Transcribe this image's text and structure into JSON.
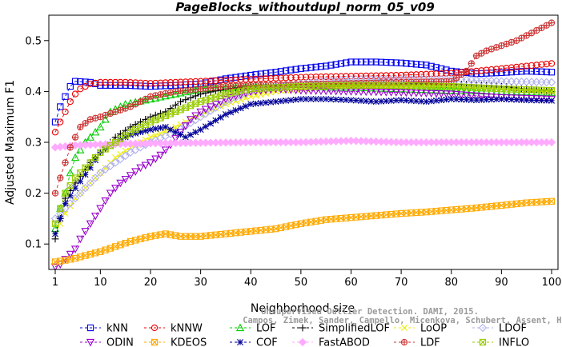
{
  "chart_data": {
    "type": "line",
    "title": "PageBlocks_withoutdupl_norm_05_v09",
    "xlabel": "Neighborhood size",
    "ylabel": "Adjusted Maximum F1",
    "xlim": [
      1,
      100
    ],
    "ylim": [
      0.05,
      0.55
    ],
    "xticks": [
      1,
      10,
      20,
      30,
      40,
      50,
      60,
      70,
      80,
      90,
      100
    ],
    "yticks": [
      0.1,
      0.2,
      0.3,
      0.4,
      0.5
    ],
    "grid": false,
    "legend_position": "bottom",
    "watermark": [
      "Unsupervised Outlier Detection. DAMI, 2015.",
      "Campos, Zimek, Sander, Campello, Micenkova, Schubert, Assent, Houle"
    ],
    "series": [
      {
        "name": "kNN",
        "color": "#0000ee",
        "marker": "square",
        "dash": "4,3",
        "points": [
          [
            1,
            0.34
          ],
          [
            2,
            0.37
          ],
          [
            3,
            0.39
          ],
          [
            4,
            0.41
          ],
          [
            5,
            0.42
          ],
          [
            8,
            0.418
          ],
          [
            10,
            0.412
          ],
          [
            15,
            0.412
          ],
          [
            20,
            0.41
          ],
          [
            25,
            0.412
          ],
          [
            30,
            0.415
          ],
          [
            35,
            0.425
          ],
          [
            40,
            0.432
          ],
          [
            45,
            0.438
          ],
          [
            50,
            0.445
          ],
          [
            55,
            0.45
          ],
          [
            60,
            0.458
          ],
          [
            65,
            0.458
          ],
          [
            70,
            0.456
          ],
          [
            75,
            0.452
          ],
          [
            80,
            0.44
          ],
          [
            85,
            0.435
          ],
          [
            90,
            0.437
          ],
          [
            95,
            0.44
          ],
          [
            100,
            0.438
          ]
        ]
      },
      {
        "name": "kNNW",
        "color": "#ee0000",
        "marker": "circle",
        "dash": "4,3",
        "points": [
          [
            1,
            0.32
          ],
          [
            2,
            0.34
          ],
          [
            3,
            0.36
          ],
          [
            4,
            0.38
          ],
          [
            5,
            0.395
          ],
          [
            6,
            0.405
          ],
          [
            8,
            0.415
          ],
          [
            10,
            0.418
          ],
          [
            15,
            0.418
          ],
          [
            20,
            0.416
          ],
          [
            25,
            0.418
          ],
          [
            30,
            0.42
          ],
          [
            35,
            0.422
          ],
          [
            40,
            0.424
          ],
          [
            45,
            0.426
          ],
          [
            50,
            0.428
          ],
          [
            60,
            0.43
          ],
          [
            70,
            0.432
          ],
          [
            80,
            0.436
          ],
          [
            85,
            0.44
          ],
          [
            90,
            0.445
          ],
          [
            95,
            0.45
          ],
          [
            100,
            0.455
          ]
        ]
      },
      {
        "name": "LOF",
        "color": "#00cc00",
        "marker": "triangle",
        "dash": "4,3",
        "points": [
          [
            1,
            0.13
          ],
          [
            2,
            0.17
          ],
          [
            3,
            0.2
          ],
          [
            4,
            0.24
          ],
          [
            5,
            0.27
          ],
          [
            7,
            0.3
          ],
          [
            10,
            0.33
          ],
          [
            12,
            0.36
          ],
          [
            15,
            0.375
          ],
          [
            20,
            0.385
          ],
          [
            25,
            0.395
          ],
          [
            30,
            0.405
          ],
          [
            40,
            0.41
          ],
          [
            50,
            0.41
          ],
          [
            60,
            0.408
          ],
          [
            70,
            0.405
          ],
          [
            80,
            0.402
          ],
          [
            90,
            0.4
          ],
          [
            100,
            0.398
          ]
        ]
      },
      {
        "name": "SimplifiedLOF",
        "color": "#000000",
        "marker": "plus",
        "dash": "4,3",
        "points": [
          [
            1,
            0.11
          ],
          [
            2,
            0.15
          ],
          [
            3,
            0.19
          ],
          [
            5,
            0.22
          ],
          [
            8,
            0.26
          ],
          [
            10,
            0.28
          ],
          [
            13,
            0.31
          ],
          [
            16,
            0.33
          ],
          [
            20,
            0.35
          ],
          [
            23,
            0.36
          ],
          [
            26,
            0.38
          ],
          [
            30,
            0.395
          ],
          [
            35,
            0.405
          ],
          [
            40,
            0.41
          ],
          [
            50,
            0.414
          ],
          [
            60,
            0.414
          ],
          [
            70,
            0.415
          ],
          [
            80,
            0.415
          ],
          [
            85,
            0.413
          ],
          [
            90,
            0.41
          ],
          [
            95,
            0.405
          ],
          [
            100,
            0.4
          ]
        ]
      },
      {
        "name": "LoOP",
        "color": "#eeee00",
        "marker": "cross",
        "dash": "4,3",
        "points": [
          [
            1,
            0.12
          ],
          [
            2,
            0.14
          ],
          [
            3,
            0.16
          ],
          [
            5,
            0.19
          ],
          [
            8,
            0.22
          ],
          [
            10,
            0.24
          ],
          [
            13,
            0.27
          ],
          [
            16,
            0.29
          ],
          [
            20,
            0.31
          ],
          [
            25,
            0.33
          ],
          [
            30,
            0.355
          ],
          [
            35,
            0.375
          ],
          [
            40,
            0.39
          ],
          [
            45,
            0.4
          ],
          [
            50,
            0.405
          ],
          [
            60,
            0.41
          ],
          [
            70,
            0.41
          ],
          [
            80,
            0.41
          ],
          [
            90,
            0.405
          ],
          [
            100,
            0.4
          ]
        ]
      },
      {
        "name": "LDOF",
        "color": "#b0b0ee",
        "marker": "diamond",
        "dash": "4,3",
        "points": [
          [
            1,
            0.15
          ],
          [
            2,
            0.16
          ],
          [
            3,
            0.17
          ],
          [
            5,
            0.19
          ],
          [
            8,
            0.22
          ],
          [
            10,
            0.24
          ],
          [
            13,
            0.26
          ],
          [
            16,
            0.28
          ],
          [
            20,
            0.3
          ],
          [
            25,
            0.32
          ],
          [
            30,
            0.35
          ],
          [
            35,
            0.38
          ],
          [
            40,
            0.4
          ],
          [
            45,
            0.41
          ],
          [
            50,
            0.415
          ],
          [
            55,
            0.42
          ],
          [
            60,
            0.424
          ],
          [
            70,
            0.424
          ],
          [
            80,
            0.424
          ],
          [
            90,
            0.42
          ],
          [
            100,
            0.418
          ]
        ]
      },
      {
        "name": "ODIN",
        "color": "#9900cc",
        "marker": "triangle-down",
        "dash": "4,3",
        "points": [
          [
            1,
            0.055
          ],
          [
            2,
            0.06
          ],
          [
            3,
            0.07
          ],
          [
            4,
            0.08
          ],
          [
            5,
            0.09
          ],
          [
            6,
            0.11
          ],
          [
            8,
            0.14
          ],
          [
            10,
            0.17
          ],
          [
            12,
            0.2
          ],
          [
            14,
            0.22
          ],
          [
            16,
            0.235
          ],
          [
            18,
            0.25
          ],
          [
            20,
            0.26
          ],
          [
            22,
            0.275
          ],
          [
            24,
            0.295
          ],
          [
            26,
            0.32
          ],
          [
            28,
            0.345
          ],
          [
            30,
            0.36
          ],
          [
            35,
            0.385
          ],
          [
            40,
            0.4
          ],
          [
            45,
            0.405
          ],
          [
            50,
            0.402
          ],
          [
            60,
            0.4
          ],
          [
            70,
            0.398
          ],
          [
            80,
            0.395
          ],
          [
            90,
            0.388
          ],
          [
            100,
            0.385
          ]
        ]
      },
      {
        "name": "KDEOS",
        "color": "#ffaa00",
        "marker": "square-x",
        "dash": "4,3",
        "points": [
          [
            1,
            0.065
          ],
          [
            3,
            0.068
          ],
          [
            5,
            0.072
          ],
          [
            8,
            0.08
          ],
          [
            10,
            0.085
          ],
          [
            13,
            0.095
          ],
          [
            16,
            0.105
          ],
          [
            20,
            0.115
          ],
          [
            23,
            0.12
          ],
          [
            26,
            0.115
          ],
          [
            30,
            0.115
          ],
          [
            35,
            0.12
          ],
          [
            40,
            0.125
          ],
          [
            45,
            0.13
          ],
          [
            50,
            0.14
          ],
          [
            55,
            0.148
          ],
          [
            60,
            0.152
          ],
          [
            65,
            0.156
          ],
          [
            70,
            0.16
          ],
          [
            75,
            0.163
          ],
          [
            80,
            0.167
          ],
          [
            85,
            0.171
          ],
          [
            90,
            0.176
          ],
          [
            95,
            0.181
          ],
          [
            100,
            0.184
          ]
        ]
      },
      {
        "name": "COF",
        "color": "#000099",
        "marker": "asterisk",
        "dash": "4,3",
        "points": [
          [
            1,
            0.12
          ],
          [
            2,
            0.15
          ],
          [
            3,
            0.18
          ],
          [
            5,
            0.21
          ],
          [
            8,
            0.25
          ],
          [
            10,
            0.28
          ],
          [
            13,
            0.3
          ],
          [
            16,
            0.315
          ],
          [
            20,
            0.325
          ],
          [
            23,
            0.33
          ],
          [
            25,
            0.32
          ],
          [
            27,
            0.31
          ],
          [
            30,
            0.325
          ],
          [
            35,
            0.355
          ],
          [
            40,
            0.375
          ],
          [
            45,
            0.38
          ],
          [
            50,
            0.385
          ],
          [
            55,
            0.385
          ],
          [
            60,
            0.383
          ],
          [
            65,
            0.38
          ],
          [
            70,
            0.383
          ],
          [
            75,
            0.38
          ],
          [
            80,
            0.385
          ],
          [
            85,
            0.383
          ],
          [
            90,
            0.385
          ],
          [
            95,
            0.383
          ],
          [
            100,
            0.382
          ]
        ]
      },
      {
        "name": "FastABOD",
        "color": "#ffaaff",
        "marker": "diamond-filled",
        "dash": "4,3",
        "points": [
          [
            1,
            0.29
          ],
          [
            3,
            0.292
          ],
          [
            5,
            0.294
          ],
          [
            10,
            0.296
          ],
          [
            15,
            0.297
          ],
          [
            20,
            0.298
          ],
          [
            30,
            0.299
          ],
          [
            40,
            0.3
          ],
          [
            50,
            0.3
          ],
          [
            60,
            0.303
          ],
          [
            70,
            0.3
          ],
          [
            80,
            0.3
          ],
          [
            90,
            0.3
          ],
          [
            100,
            0.3
          ]
        ]
      },
      {
        "name": "LDF",
        "color": "#cc3333",
        "marker": "circle-plus",
        "dash": "4,3",
        "points": [
          [
            1,
            0.2
          ],
          [
            2,
            0.23
          ],
          [
            3,
            0.26
          ],
          [
            4,
            0.29
          ],
          [
            5,
            0.31
          ],
          [
            6,
            0.33
          ],
          [
            8,
            0.345
          ],
          [
            10,
            0.35
          ],
          [
            13,
            0.36
          ],
          [
            16,
            0.37
          ],
          [
            20,
            0.39
          ],
          [
            25,
            0.4
          ],
          [
            30,
            0.405
          ],
          [
            35,
            0.41
          ],
          [
            40,
            0.412
          ],
          [
            50,
            0.414
          ],
          [
            60,
            0.416
          ],
          [
            70,
            0.418
          ],
          [
            80,
            0.42
          ],
          [
            83,
            0.44
          ],
          [
            85,
            0.47
          ],
          [
            87,
            0.48
          ],
          [
            90,
            0.49
          ],
          [
            93,
            0.5
          ],
          [
            95,
            0.51
          ],
          [
            98,
            0.525
          ],
          [
            100,
            0.535
          ]
        ]
      },
      {
        "name": "INFLO",
        "color": "#99cc00",
        "marker": "square-x",
        "dash": "4,3",
        "points": [
          [
            1,
            0.14
          ],
          [
            2,
            0.17
          ],
          [
            3,
            0.2
          ],
          [
            5,
            0.23
          ],
          [
            8,
            0.26
          ],
          [
            10,
            0.28
          ],
          [
            13,
            0.3
          ],
          [
            16,
            0.32
          ],
          [
            20,
            0.34
          ],
          [
            25,
            0.36
          ],
          [
            30,
            0.38
          ],
          [
            35,
            0.395
          ],
          [
            40,
            0.405
          ],
          [
            50,
            0.41
          ],
          [
            60,
            0.412
          ],
          [
            70,
            0.412
          ],
          [
            80,
            0.41
          ],
          [
            90,
            0.405
          ],
          [
            100,
            0.402
          ]
        ]
      }
    ],
    "legend_rows": [
      [
        "kNN",
        "kNNW",
        "LOF",
        "SimplifiedLOF",
        "LoOP",
        "LDOF"
      ],
      [
        "ODIN",
        "KDEOS",
        "COF",
        "FastABOD",
        "LDF",
        "INFLO"
      ]
    ]
  }
}
